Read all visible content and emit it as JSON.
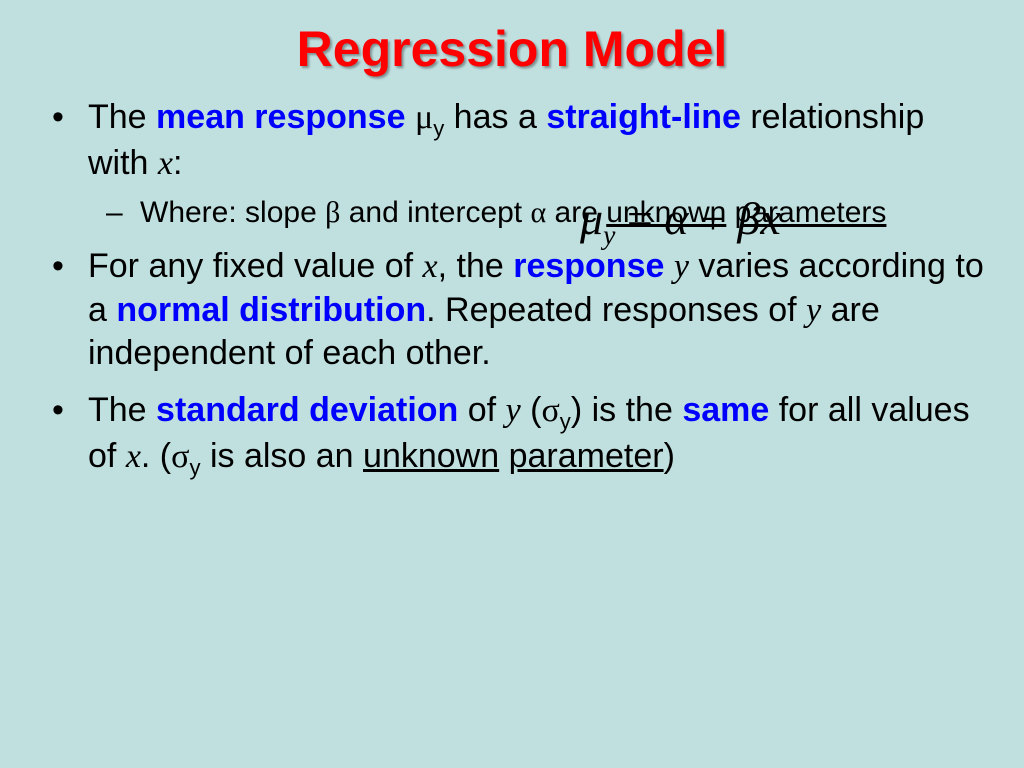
{
  "slide": {
    "background_color": "#c0dfdf",
    "title": {
      "text": "Regression Model",
      "color": "#ff0000",
      "fontsize": 50,
      "shadow": true
    },
    "equation": {
      "mu": "μ",
      "sub": "y",
      "eq": " = ",
      "alpha": "α",
      "plus": " + ",
      "beta": "β",
      "x": "x",
      "fontsize": 46,
      "color": "#000000"
    },
    "bullets": {
      "b1": {
        "t1": "The ",
        "kw1": "mean response",
        "t2": " ",
        "mu": "μ",
        "sub": "y",
        "t3": " has a ",
        "kw2": "straight-line",
        "t4": " relationship with ",
        "x": "x",
        "t5": ":",
        "sub1": {
          "t1": "Where: slope ",
          "beta": "β",
          "t2": " and intercept ",
          "alpha": "α",
          "t3": " are ",
          "u1": "unknown",
          "t4": " ",
          "u2": "parameters"
        }
      },
      "b2": {
        "t1": "For any fixed value of ",
        "x1": "x",
        "t2": ", the ",
        "kw1": "response",
        "t3": " ",
        "y1": "y",
        "t4": " varies according to a ",
        "kw2": "normal distribution",
        "t5": ". Repeated responses of ",
        "y2": "y",
        "t6": " are independent of each other."
      },
      "b3": {
        "t1": "The ",
        "kw1": "standard deviation",
        "t2": " of ",
        "y1": "y",
        "t3": " (",
        "sigma1": "σ",
        "sub1": "y",
        "t4": ") is the ",
        "kw2": "same",
        "t5": " for all values of ",
        "x1": "x",
        "t6": ".  (",
        "sigma2": "σ",
        "sub2": "y",
        "t7": " is also an ",
        "u1": "unknown",
        "t8": " ",
        "u2": "parameter",
        "t9": ")"
      }
    },
    "colors": {
      "keyword": "#0000ff",
      "body_text": "#000000",
      "bullet_marker": "#000000"
    },
    "typography": {
      "body_fontsize": 34,
      "sub_fontsize": 30,
      "body_font": "Arial",
      "equation_font": "Times New Roman"
    }
  }
}
